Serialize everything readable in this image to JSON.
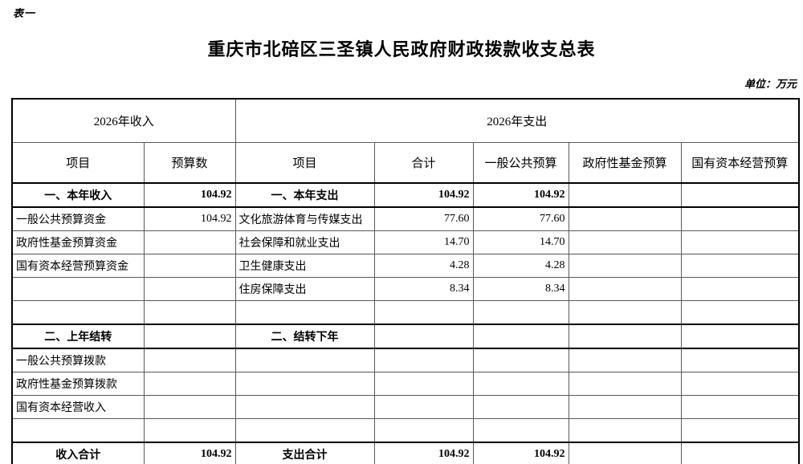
{
  "page": {
    "table_label": "表一",
    "title": "重庆市北碚区三圣镇人民政府财政拨款收支总表",
    "unit_note": "单位：万元"
  },
  "table": {
    "group_headers": [
      {
        "label": "2026年收入",
        "span": "2"
      },
      {
        "label": "2026年支出",
        "span": "5"
      }
    ],
    "columns": [
      "项目",
      "预算数",
      "项目",
      "合计",
      "一般公共预算",
      "政府性基金预算",
      "国有资本经营预算"
    ],
    "rows": [
      {
        "type": "section",
        "cells": [
          "一、本年收入",
          "104.92",
          "一、本年支出",
          "104.92",
          "104.92",
          "",
          ""
        ]
      },
      {
        "type": "item",
        "cells": [
          "一般公共预算资金",
          "104.92",
          "文化旅游体育与传媒支出",
          "77.60",
          "77.60",
          "",
          ""
        ]
      },
      {
        "type": "item",
        "cells": [
          "政府性基金预算资金",
          "",
          "社会保障和就业支出",
          "14.70",
          "14.70",
          "",
          ""
        ]
      },
      {
        "type": "item",
        "cells": [
          "国有资本经营预算资金",
          "",
          "卫生健康支出",
          "4.28",
          "4.28",
          "",
          ""
        ]
      },
      {
        "type": "item",
        "cells": [
          "",
          "",
          "住房保障支出",
          "8.34",
          "8.34",
          "",
          ""
        ]
      },
      {
        "type": "blank",
        "cells": [
          "",
          "",
          "",
          "",
          "",
          "",
          ""
        ]
      },
      {
        "type": "section",
        "cells": [
          "二、上年结转",
          "",
          "二、结转下年",
          "",
          "",
          "",
          ""
        ]
      },
      {
        "type": "item",
        "cells": [
          "一般公共预算拨款",
          "",
          "",
          "",
          "",
          "",
          ""
        ]
      },
      {
        "type": "item",
        "cells": [
          "政府性基金预算拨款",
          "",
          "",
          "",
          "",
          "",
          ""
        ]
      },
      {
        "type": "item",
        "cells": [
          "国有资本经营收入",
          "",
          "",
          "",
          "",
          "",
          ""
        ]
      },
      {
        "type": "blank",
        "cells": [
          "",
          "",
          "",
          "",
          "",
          "",
          ""
        ]
      },
      {
        "type": "total",
        "cells": [
          "收入合计",
          "104.92",
          "支出合计",
          "104.92",
          "104.92",
          "",
          ""
        ]
      }
    ]
  }
}
